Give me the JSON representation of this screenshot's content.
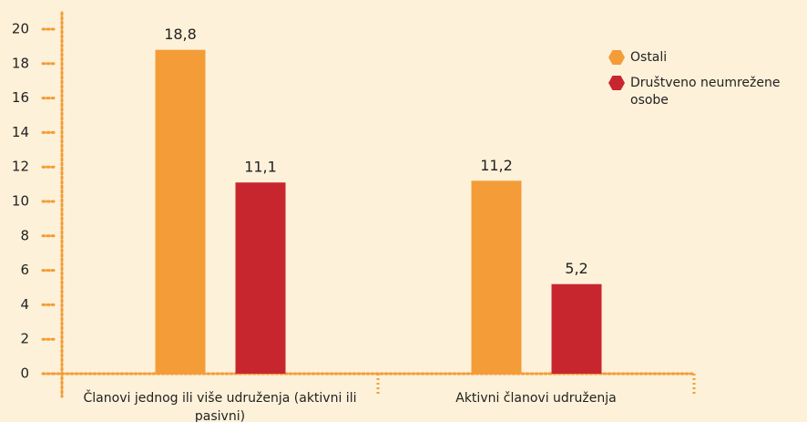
{
  "chart_data": {
    "type": "bar",
    "categories": [
      "Članovi jednog ili više udruženja (aktivni ili pasivni)",
      "Aktivni članovi udruženja"
    ],
    "series": [
      {
        "name": "Ostali",
        "color": "#f39c38",
        "values": [
          18.8,
          11.2
        ],
        "value_labels": [
          "18,8",
          "11,2"
        ]
      },
      {
        "name": "Društveno neumrežene osobe",
        "color": "#c8262f",
        "values": [
          11.1,
          5.2
        ],
        "value_labels": [
          "11,1",
          "5,2"
        ]
      }
    ],
    "ylim": [
      0,
      20
    ],
    "yticks": [
      0,
      2,
      4,
      6,
      8,
      10,
      12,
      14,
      16,
      18,
      20
    ],
    "grid": false,
    "legend": "top-right"
  }
}
